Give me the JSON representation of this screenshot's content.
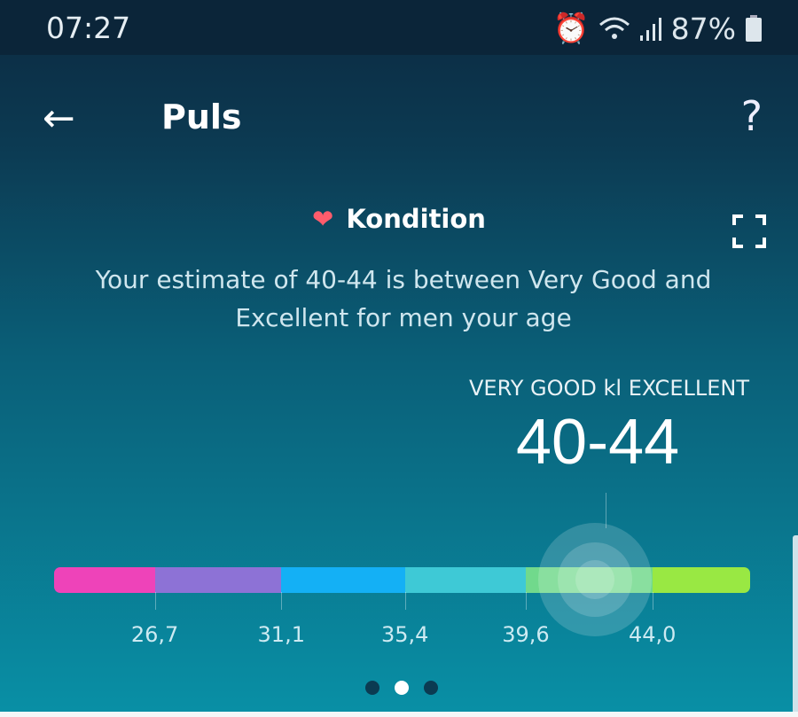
{
  "status_bar": {
    "time": "07:27",
    "battery": "87%",
    "icons": [
      "alarm-icon",
      "wifi-icon",
      "signal-icon",
      "battery-icon"
    ]
  },
  "header": {
    "title": "Puls",
    "back_icon": "arrow-left-icon",
    "help_label": "?"
  },
  "card": {
    "title": "Kondition",
    "title_icon": "heart-icon",
    "description": "Your estimate of 40-44 is between Very Good and Excellent for men your age",
    "range_label": "VERY GOOD kl EXCELLENT",
    "range_value": "40-44"
  },
  "scale": {
    "min": 23.2,
    "max": 47.4,
    "marker_value": 42.0,
    "segments": [
      {
        "color": "#ee43b9",
        "to": 26.7
      },
      {
        "color": "#8d72d6",
        "to": 31.1
      },
      {
        "color": "#14b0f5",
        "to": 35.4
      },
      {
        "color": "#3ec9d6",
        "to": 39.6
      },
      {
        "color": "#71d98c",
        "to": 44.0
      },
      {
        "color": "#99e843",
        "to": 47.4
      }
    ],
    "ticks": [
      {
        "value": 26.7,
        "label": "26,7"
      },
      {
        "value": 31.1,
        "label": "31,1"
      },
      {
        "value": 35.4,
        "label": "35,4"
      },
      {
        "value": 39.6,
        "label": "39,6"
      },
      {
        "value": 44.0,
        "label": "44,0"
      }
    ]
  },
  "pager": {
    "count": 3,
    "active": 1
  },
  "colors": {
    "heart": "#ff5c6c"
  }
}
